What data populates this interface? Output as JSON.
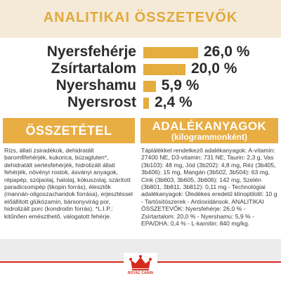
{
  "analytical": {
    "title": "ANALITIKAI ÖSSZETEVŐK",
    "rows": [
      {
        "label": "Nyersfehérje",
        "value": "26,0 %",
        "pct": 26.0
      },
      {
        "label": "Zsírtartalom",
        "value": "20,0 %",
        "pct": 20.0
      },
      {
        "label": "Nyershamu",
        "value": "5,9 %",
        "pct": 5.9
      },
      {
        "label": "Nyersrost",
        "value": "2,4 %",
        "pct": 2.4
      }
    ]
  },
  "composition": {
    "title": "ÖSSZETÉTEL",
    "text": "Rizs, állati zsiradékok, dehidratált baromfifehérjék, kukorica, búzagluten*, dehidratált sertésfehérjék, hidrolizált állati fehérjék, növényi rostok, ásványi anyagok, répapép, szójaolaj, halolaj, kókuszolaj, szárított paradicsompép (likopin forrás), élesztők (mannán-oligoszacharidok forrása), erjesztéssel előállított glükózamin, bársonyvirág por, hidrolizált porc (kondroitin forrás). *L.I.P.: kitűnően emészthető, válogatott fehérje."
  },
  "additives": {
    "title": "ADALÉKANYAGOK",
    "subtitle": "(kilogrammonként)",
    "text": "Táplálékkel rendelkező adalékanyagok: A-vitamin: 27400 NE, D3-vitamin: 731 NE, Taurin: 2,3 g, Vas (3b103): 48 mg, Jód (3b202): 4,8 mg, Réz (3b405, 3b406): 15 mg, Mangán (3b502, 3b504): 63 mg, Cink (3b603, 3b605, 3b606): 142 mg, Szelén (3b801, 3b811, 3b812): 0,11 mg - Technológiai adalékanyagok: Üledékes eredetű klinoptilolit: 10 g - Tartósítószerek - Antioxidánsok. ANALITIKAI ÖSSZETEVŐK: Nyersfehérje: 26,0 % - Zsírtartalom: 20,0 % - Nyershamu: 5,9 % - EPA/DHA: 0,4 % - L-karnitin: 840 mg/kg."
  },
  "logo": {
    "text": "ROYAL CANIN"
  },
  "colors": {
    "accent": "#e8ad43",
    "band": "#f5ead7",
    "brand_red": "#d52b1e"
  }
}
